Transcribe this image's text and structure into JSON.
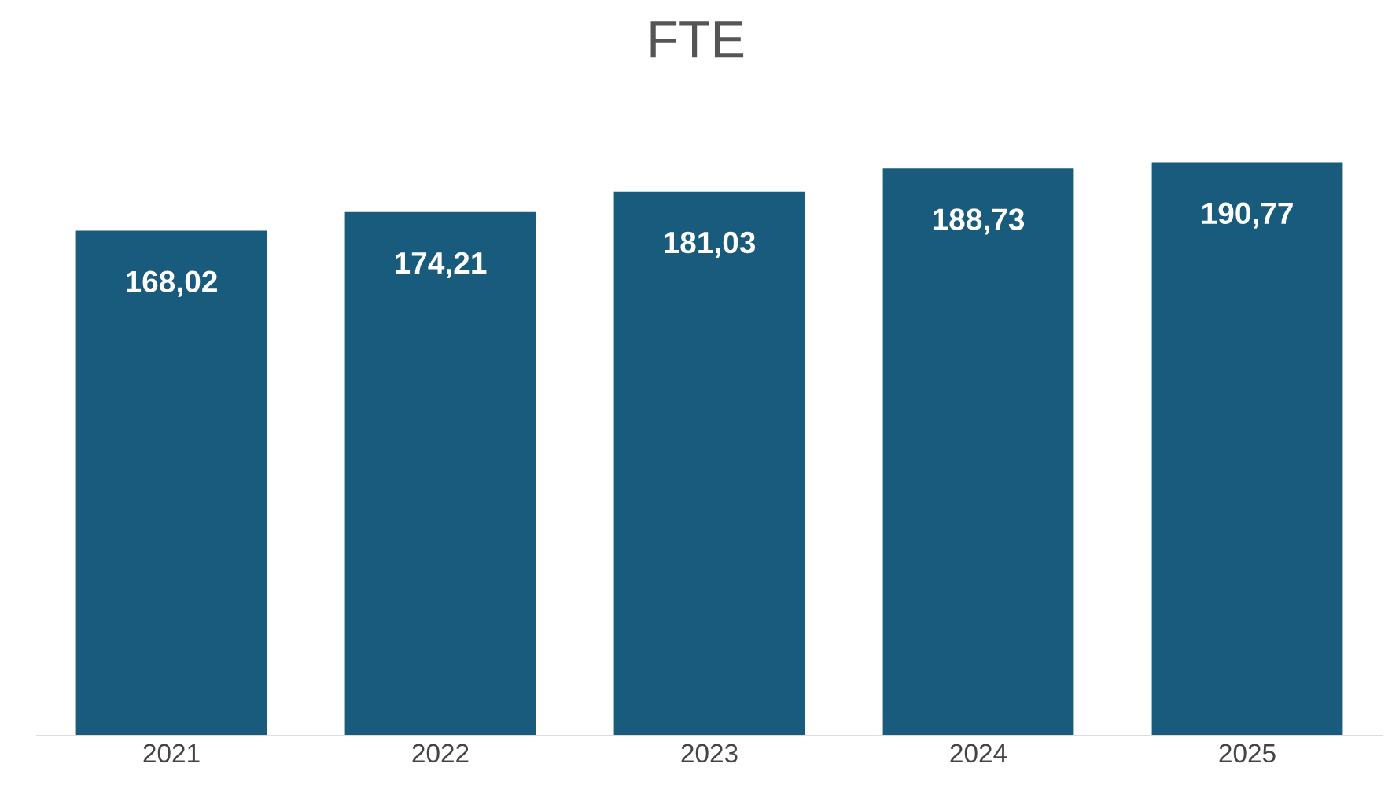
{
  "chart_data": {
    "type": "bar",
    "title": "FTE",
    "categories": [
      "2021",
      "2022",
      "2023",
      "2024",
      "2025"
    ],
    "values": [
      168.02,
      174.21,
      181.03,
      188.73,
      190.77
    ],
    "value_labels": [
      "168,02",
      "174,21",
      "181,03",
      "188,73",
      "190,77"
    ],
    "color": "#185b7c",
    "tick_labels": "x",
    "grid": false,
    "legend": false
  }
}
